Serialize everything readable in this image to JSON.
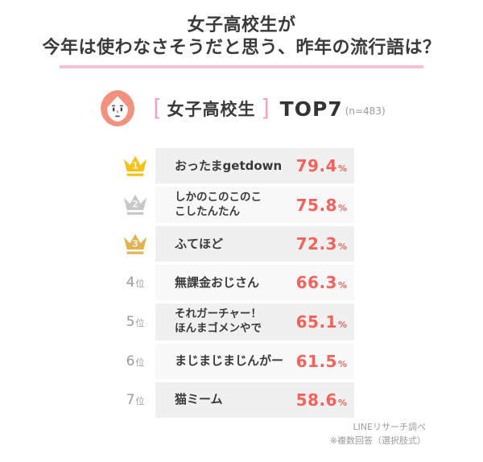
{
  "title": {
    "line1": "女子高校生が",
    "line2": "今年は使わなさそうだと思う、昨年の流行語は？"
  },
  "header": {
    "bracket_open": "[",
    "group": "女子高校生",
    "bracket_close": "]",
    "rank_label": "TOP7",
    "sample": "(n=483)"
  },
  "ranking": [
    {
      "rank": "1",
      "rank_style": "crown-gold",
      "lines": [
        "おったまgetdown"
      ],
      "value": "79.4",
      "unit": "%"
    },
    {
      "rank": "2",
      "rank_style": "crown-silver",
      "lines": [
        "しかのこのこのこ",
        "こしたんたん"
      ],
      "value": "75.8",
      "unit": "%"
    },
    {
      "rank": "3",
      "rank_style": "crown-bronze",
      "lines": [
        "ふてほど"
      ],
      "value": "72.3",
      "unit": "%"
    },
    {
      "rank": "4",
      "rank_style": "text",
      "rank_suffix": "位",
      "lines": [
        "無課金おじさん"
      ],
      "value": "66.3",
      "unit": "%"
    },
    {
      "rank": "5",
      "rank_style": "text",
      "rank_suffix": "位",
      "lines": [
        "それガーチャー！",
        "ほんまゴメンやで"
      ],
      "value": "65.1",
      "unit": "%"
    },
    {
      "rank": "6",
      "rank_style": "text",
      "rank_suffix": "位",
      "lines": [
        "まじまじまじんがー"
      ],
      "value": "61.5",
      "unit": "%"
    },
    {
      "rank": "7",
      "rank_style": "text",
      "rank_suffix": "位",
      "lines": [
        "猫ミーム"
      ],
      "value": "58.6",
      "unit": "%"
    }
  ],
  "footer": {
    "source": "LINEリサーチ調べ",
    "note": "※複数回答（選択肢式）"
  },
  "icons": {
    "girl_face_icon": "👧",
    "crown_icon": "👑"
  },
  "colors": {
    "accent_pink": "#f8c0d6",
    "bracket_pink": "#f79fc0",
    "percent_red": "#f4625b",
    "row_odd_bg": "#f0f0f0",
    "row_even_bg": "#f8f8f8",
    "gold": "#f3c118",
    "silver": "#c8c8c8",
    "bronze": "#e0b250",
    "avatar_salmon": "#f2917e",
    "text_dark": "#3a3a3a",
    "text_gray": "#9b9b9b"
  },
  "chart_data": {
    "type": "table",
    "title": "女子高校生が今年は使わなさそうだと思う、昨年の流行語は？",
    "group": "女子高校生",
    "top_label": "TOP7",
    "sample_size": 483,
    "categories": [
      "おったまgetdown",
      "しかのこのこのこ こしたんたん",
      "ふてほど",
      "無課金おじさん",
      "それガーチャー！ほんまゴメンやで",
      "まじまじまじんがー",
      "猫ミーム"
    ],
    "values": [
      79.4,
      75.8,
      72.3,
      66.3,
      65.1,
      61.5,
      58.6
    ],
    "unit": "%",
    "ranks": [
      1,
      2,
      3,
      4,
      5,
      6,
      7
    ],
    "source": "LINEリサーチ調べ",
    "note": "※複数回答（選択肢式）"
  }
}
